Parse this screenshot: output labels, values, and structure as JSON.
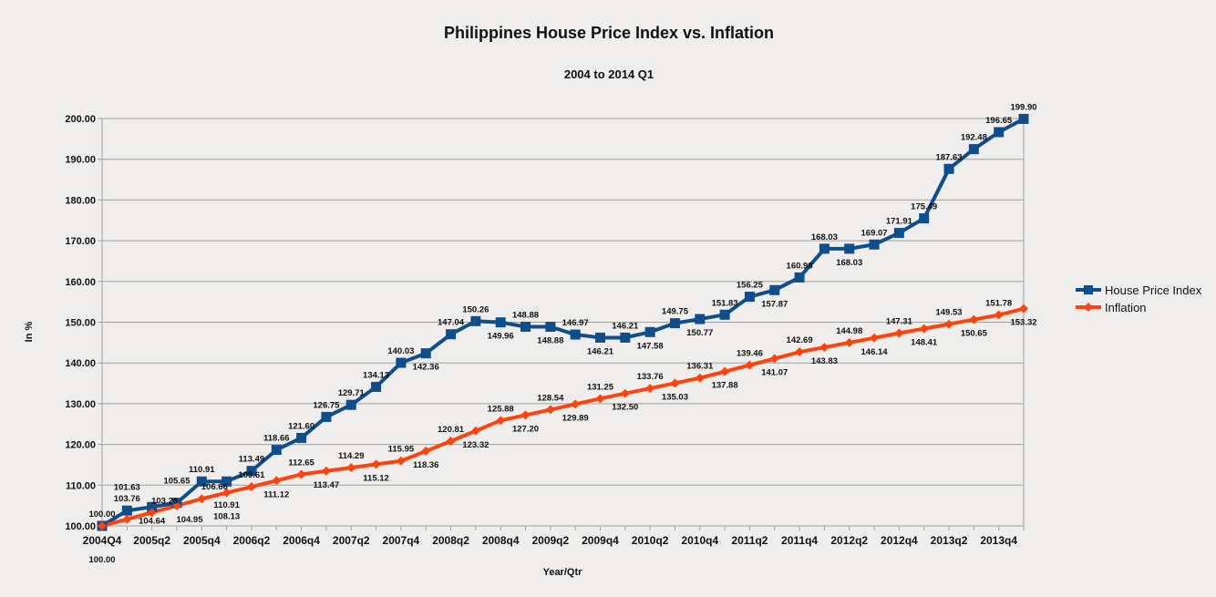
{
  "chart_data": {
    "type": "line",
    "title": "Philippines House Price Index vs. Inflation",
    "subtitle": "2004 to 2014 Q1",
    "xlabel": "Year/Qtr",
    "ylabel": "In %",
    "ylim": [
      100,
      200
    ],
    "yticks": [
      "100.00",
      "110.00",
      "120.00",
      "130.00",
      "140.00",
      "150.00",
      "160.00",
      "170.00",
      "180.00",
      "190.00",
      "200.00"
    ],
    "grid": "horizontal",
    "legend_position": "right",
    "x": [
      "2004Q4",
      "2005q1",
      "2005q2",
      "2005q3",
      "2005q4",
      "2006q1",
      "2006q2",
      "2006q3",
      "2006q4",
      "2007q1",
      "2007q2",
      "2007q3",
      "2007q4",
      "2008q1",
      "2008q2",
      "2008q3",
      "2008q4",
      "2009q1",
      "2009q2",
      "2009q3",
      "2009q4",
      "2010q1",
      "2010q2",
      "2010q3",
      "2010q4",
      "2011q1",
      "2011q2",
      "2011q3",
      "2011q4",
      "2012q1",
      "2012q2",
      "2012q3",
      "2012q4",
      "2013q1",
      "2013q2",
      "2013q3",
      "2013q4",
      "2014q1"
    ],
    "xtick_labels": [
      "2004Q4",
      "2005q2",
      "2005q4",
      "2006q2",
      "2006q4",
      "2007q2",
      "2007q4",
      "2008q2",
      "2008q4",
      "2009q2",
      "2009q4",
      "2010q2",
      "2010q4",
      "2011q2",
      "2011q4",
      "2012q2",
      "2012q4",
      "2013q2",
      "2013q4"
    ],
    "series": [
      {
        "name": "House Price Index",
        "color": "#0f4d8c",
        "marker": "square",
        "values": [
          100.0,
          103.76,
          104.64,
          105.65,
          110.91,
          110.91,
          113.49,
          118.66,
          121.6,
          126.75,
          129.71,
          134.13,
          140.03,
          142.36,
          147.04,
          150.26,
          149.96,
          148.88,
          148.88,
          146.97,
          146.21,
          146.21,
          147.58,
          149.75,
          150.77,
          151.83,
          156.25,
          157.87,
          160.98,
          168.03,
          168.03,
          169.07,
          171.91,
          175.49,
          187.63,
          192.48,
          196.65,
          199.9
        ]
      },
      {
        "name": "Inflation",
        "color": "#ff420e",
        "marker": "diamond",
        "values": [
          100.0,
          101.63,
          103.28,
          104.95,
          106.66,
          108.13,
          109.61,
          111.12,
          112.65,
          113.47,
          114.29,
          115.12,
          115.95,
          118.36,
          120.81,
          123.32,
          125.88,
          127.2,
          128.54,
          129.89,
          131.25,
          132.5,
          133.76,
          135.03,
          136.31,
          137.88,
          139.46,
          141.07,
          142.69,
          143.83,
          144.98,
          146.14,
          147.31,
          148.41,
          149.53,
          150.65,
          151.78,
          153.32
        ]
      }
    ]
  }
}
